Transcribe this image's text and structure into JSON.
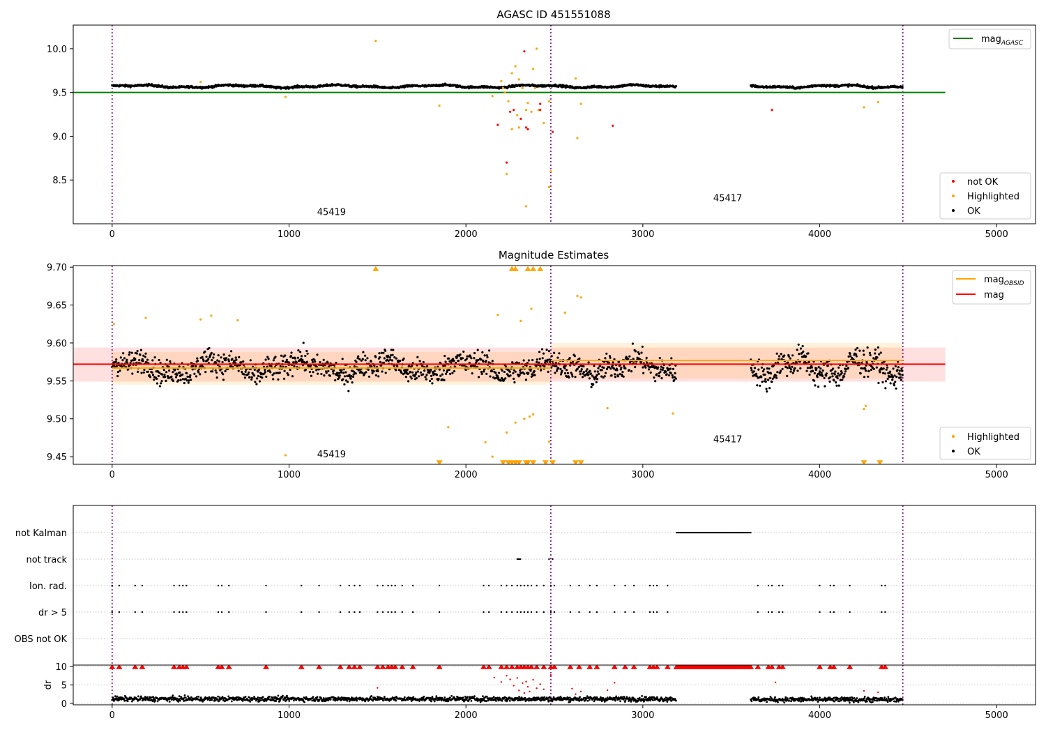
{
  "figure": {
    "title_top": "AGASC ID 451551088",
    "title_mid": "Magnitude Estimates"
  },
  "colors": {
    "ok": "#000000",
    "highlighted": "#ffa500",
    "not_ok": "#ff0000",
    "mag_agasc": "#008000",
    "mag_obsid": "#ffa500",
    "mag": "#ff0000",
    "obsid_boundary": "#800080"
  },
  "chart_data": [
    {
      "type": "scatter",
      "title": "AGASC ID 451551088",
      "xlim": [
        -220,
        5220
      ],
      "ylim": [
        8.0,
        10.27
      ],
      "xticks": [
        0,
        1000,
        2000,
        3000,
        4000,
        5000
      ],
      "xtick_labels": [
        "0",
        "1000",
        "2000",
        "3000",
        "4000",
        "5000"
      ],
      "yticks": [
        8.5,
        9.0,
        9.5,
        10.0
      ],
      "ytick_labels": [
        "8.5",
        "9.0",
        "9.5",
        "10.0"
      ],
      "obsid_boundaries": [
        0,
        2480,
        4470
      ],
      "obsid_labels": [
        {
          "text": "45419",
          "x": 1240,
          "y": 8.1
        },
        {
          "text": "45417",
          "x": 3480,
          "y": 8.26
        }
      ],
      "lines": [
        {
          "name": "mag",
          "subscript": "AGASC",
          "x": [
            -220,
            4710
          ],
          "y": [
            9.5,
            9.5
          ],
          "color": "#008000"
        }
      ],
      "series": [
        {
          "name": "not OK",
          "color": "#ff0000",
          "x": [
            2330,
            2340,
            2350,
            2250,
            2270,
            2310,
            2420,
            2180,
            2230,
            2420,
            2490,
            3730,
            2830
          ],
          "y": [
            9.97,
            9.1,
            9.08,
            9.28,
            9.3,
            9.2,
            9.37,
            9.13,
            8.7,
            9.3,
            9.05,
            9.3,
            9.12
          ]
        },
        {
          "name": "Highlighted",
          "color": "#ffa500",
          "x": [
            500,
            980,
            1490,
            1850,
            2150,
            2200,
            2220,
            2240,
            2260,
            2280,
            2290,
            2300,
            2320,
            2340,
            2350,
            2370,
            2380,
            2400,
            2410,
            2440,
            2470,
            2480,
            2620,
            2630,
            2650,
            2210,
            2230,
            2340,
            2470,
            4250,
            4330,
            2300,
            2260,
            2390
          ],
          "y": [
            9.62,
            9.45,
            10.09,
            9.35,
            9.46,
            9.63,
            9.5,
            9.4,
            9.72,
            9.8,
            9.24,
            9.65,
            9.55,
            9.3,
            9.38,
            9.28,
            9.77,
            10.0,
            9.3,
            9.15,
            9.4,
            8.6,
            9.66,
            8.98,
            9.37,
            9.55,
            8.57,
            8.2,
            8.42,
            9.33,
            9.39,
            9.1,
            9.08,
            9.55
          ]
        }
      ],
      "ok_segments": [
        {
          "x0": 0,
          "x1": 3190,
          "level": 9.57
        },
        {
          "x0": 3610,
          "x1": 4470,
          "level": 9.57
        }
      ],
      "legend_top": {
        "position": "upper right",
        "entries": [
          {
            "name": "mag",
            "subscript": "AGASC"
          }
        ]
      },
      "legend_bottom": {
        "position": "lower right",
        "entries": [
          "not OK",
          "Highlighted",
          "OK"
        ]
      }
    },
    {
      "type": "scatter",
      "title": "Magnitude Estimates",
      "xlim": [
        -220,
        5220
      ],
      "ylim": [
        9.44,
        9.702
      ],
      "xticks": [
        0,
        1000,
        2000,
        3000,
        4000,
        5000
      ],
      "xtick_labels": [
        "0",
        "1000",
        "2000",
        "3000",
        "4000",
        "5000"
      ],
      "yticks": [
        9.45,
        9.5,
        9.55,
        9.6,
        9.65,
        9.7
      ],
      "ytick_labels": [
        "9.45",
        "9.50",
        "9.55",
        "9.60",
        "9.65",
        "9.70"
      ],
      "obsid_boundaries": [
        0,
        2480,
        4470
      ],
      "obsid_labels": [
        {
          "text": "45419",
          "x": 1240,
          "y": 9.449
        },
        {
          "text": "45417",
          "x": 3480,
          "y": 9.469
        }
      ],
      "bands": [
        {
          "name": "mag",
          "x0": -220,
          "x1": 4710,
          "y0": 9.549,
          "y1": 9.594,
          "color": "#ff0000"
        },
        {
          "name": "mag_obsid_1",
          "x0": 0,
          "x1": 2480,
          "y0": 9.545,
          "y1": 9.588,
          "color": "#ffa500"
        },
        {
          "name": "mag_obsid_2",
          "x0": 2480,
          "x1": 4470,
          "y0": 9.553,
          "y1": 9.6,
          "color": "#ffa500"
        }
      ],
      "lines": [
        {
          "name": "mag",
          "subscript": "OBSID",
          "color": "#ffa500",
          "segments": [
            [
              0,
              2480,
              9.567
            ],
            [
              2480,
              4470,
              9.577
            ]
          ]
        },
        {
          "name": "mag",
          "color": "#ff0000",
          "segments": [
            [
              -220,
              4710,
              9.572
            ]
          ]
        }
      ],
      "series": [
        {
          "name": "Highlighted",
          "color": "#ffa500",
          "x": [
            10,
            190,
            500,
            560,
            710,
            980,
            1900,
            2110,
            2150,
            2180,
            2230,
            2280,
            2310,
            2360,
            2370,
            2380,
            2470,
            2560,
            2630,
            2650,
            2800,
            3170,
            4250,
            4260,
            2330
          ],
          "y": [
            9.625,
            9.633,
            9.631,
            9.636,
            9.63,
            9.452,
            9.489,
            9.469,
            9.45,
            9.637,
            9.482,
            9.495,
            9.629,
            9.503,
            9.645,
            9.506,
            9.47,
            9.64,
            9.662,
            9.66,
            9.514,
            9.507,
            9.513,
            9.517,
            9.5
          ]
        },
        {
          "name": "Highlighted (clipped high)",
          "color": "#ffa500",
          "marker": "triangle-up",
          "x": [
            1490,
            2260,
            2280,
            2350,
            2380,
            2420
          ],
          "y": [
            9.7,
            9.7,
            9.7,
            9.7,
            9.7,
            9.7
          ]
        },
        {
          "name": "Highlighted (clipped low)",
          "color": "#ffa500",
          "marker": "triangle-down",
          "x": [
            1850,
            2210,
            2240,
            2260,
            2280,
            2300,
            2340,
            2350,
            2380,
            2450,
            2490,
            2620,
            2650,
            4250,
            4340
          ],
          "y": [
            9.44,
            9.44,
            9.44,
            9.44,
            9.44,
            9.44,
            9.44,
            9.44,
            9.44,
            9.44,
            9.44,
            9.44,
            9.44,
            9.44,
            9.44
          ]
        }
      ],
      "ok_segments": [
        {
          "x0": 0,
          "x1": 3190,
          "level": 9.568
        },
        {
          "x0": 3610,
          "x1": 4470,
          "level": 9.568
        }
      ],
      "legend_top": {
        "position": "upper right",
        "entries": [
          {
            "name": "mag",
            "subscript": "OBSID"
          },
          {
            "name": "mag"
          }
        ]
      },
      "legend_bottom": {
        "position": "lower right",
        "entries": [
          "Highlighted",
          "OK"
        ]
      }
    },
    {
      "type": "scatter",
      "xlim": [
        -220,
        5220
      ],
      "flag_rows": [
        "not Kalman",
        "not track",
        "Ion. rad.",
        "dr > 5",
        "OBS not OK"
      ],
      "flags": {
        "not Kalman": {
          "ranges": [
            [
              3190,
              3610
            ]
          ],
          "points": []
        },
        "not track": {
          "ranges": [
            [
              2290,
              2310
            ]
          ],
          "points": [
            2470,
            2490
          ]
        },
        "Ion. rad.": {
          "ranges": [],
          "points": [
            0,
            40,
            130,
            170,
            350,
            380,
            400,
            420,
            600,
            620,
            660,
            870,
            1070,
            1170,
            1290,
            1340,
            1370,
            1400,
            1500,
            1530,
            1560,
            1580,
            1600,
            1640,
            1700,
            1850,
            2100,
            2130,
            2200,
            2230,
            2260,
            2290,
            2310,
            2330,
            2350,
            2370,
            2400,
            2440,
            2480,
            2500,
            2590,
            2640,
            2700,
            2740,
            2840,
            2900,
            2950,
            3040,
            3060,
            3080,
            3140,
            3650,
            3710,
            3730,
            3770,
            3790,
            4000,
            4060,
            4080,
            4170,
            4350,
            4370
          ]
        },
        "dr > 5": {
          "ranges": [],
          "points": [
            0,
            40,
            130,
            170,
            350,
            380,
            400,
            420,
            600,
            620,
            660,
            870,
            1070,
            1170,
            1290,
            1340,
            1370,
            1400,
            1500,
            1530,
            1560,
            1580,
            1600,
            1640,
            1700,
            1850,
            2100,
            2130,
            2200,
            2230,
            2260,
            2290,
            2310,
            2330,
            2350,
            2370,
            2400,
            2440,
            2480,
            2500,
            2590,
            2640,
            2700,
            2740,
            2840,
            2900,
            2950,
            3040,
            3060,
            3080,
            3140,
            3650,
            3710,
            3730,
            3770,
            3790,
            4000,
            4060,
            4080,
            4170,
            4350,
            4370
          ]
        },
        "OBS not OK": {
          "ranges": [],
          "points": []
        }
      },
      "obsid_boundaries": [
        0,
        2480,
        4470
      ]
    },
    {
      "type": "scatter",
      "ylabel": "dr",
      "xlim": [
        -220,
        5220
      ],
      "ylim": [
        -0.4,
        10.4
      ],
      "yticks": [
        0,
        5,
        10
      ],
      "ytick_labels": [
        "0",
        "5",
        "10"
      ],
      "xticks": [
        0,
        1000,
        2000,
        3000,
        4000,
        5000
      ],
      "xtick_labels": [
        "0",
        "1000",
        "2000",
        "3000",
        "4000",
        "5000"
      ],
      "obsid_boundaries": [
        0,
        2480,
        4470
      ],
      "clipped_at": 10,
      "clipped_points": [
        0,
        40,
        130,
        170,
        350,
        380,
        400,
        420,
        600,
        620,
        660,
        870,
        1070,
        1170,
        1290,
        1340,
        1370,
        1400,
        1500,
        1530,
        1560,
        1580,
        1600,
        1640,
        1700,
        1850,
        2100,
        2130,
        2200,
        2230,
        2260,
        2290,
        2310,
        2330,
        2350,
        2370,
        2400,
        2440,
        2480,
        2500,
        2590,
        2640,
        2700,
        2740,
        2840,
        2900,
        2950,
        3040,
        3060,
        3080,
        3140,
        3650,
        3710,
        3730,
        3770,
        3790,
        4000,
        4060,
        4080,
        4170,
        4350,
        4370
      ],
      "clipped_range": [
        3190,
        3610
      ],
      "red_x": [
        1500,
        2160,
        2200,
        2230,
        2250,
        2270,
        2290,
        2300,
        2320,
        2330,
        2340,
        2350,
        2360,
        2380,
        2400,
        2420,
        2440,
        2480,
        2600,
        2620,
        2650,
        2800,
        2840,
        3750,
        4250,
        4330
      ],
      "red_y": [
        4.2,
        7.0,
        5.8,
        7.5,
        6.5,
        4.8,
        6.9,
        3.5,
        5.5,
        2.8,
        5.9,
        4.5,
        3.2,
        6.4,
        4.1,
        5.2,
        3.8,
        7.7,
        4.0,
        2.5,
        3.2,
        3.6,
        5.6,
        5.7,
        3.4,
        3.0
      ],
      "ok_segments": [
        {
          "x0": 0,
          "x1": 3190,
          "level": 1.2
        },
        {
          "x0": 3610,
          "x1": 4470,
          "level": 1.0
        }
      ]
    }
  ]
}
